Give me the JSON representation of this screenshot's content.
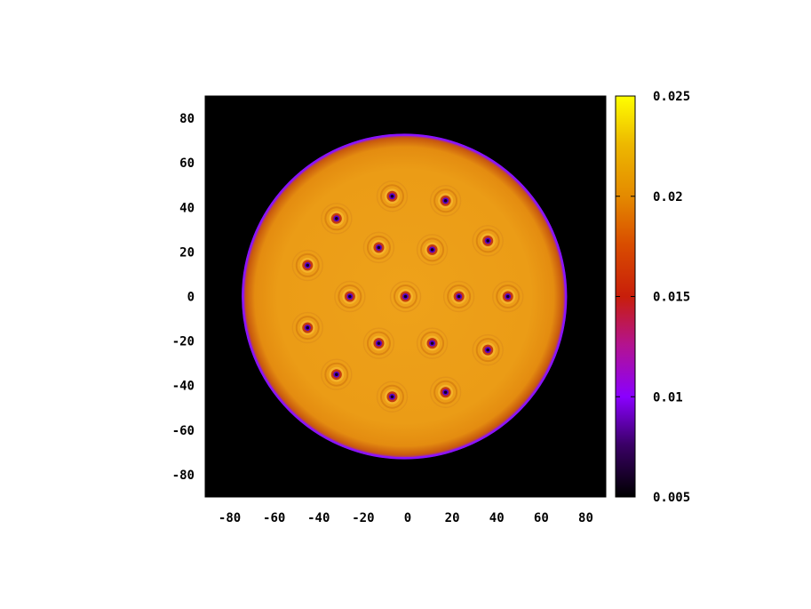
{
  "chart_data": {
    "type": "heatmap",
    "title": "",
    "xlabel": "",
    "ylabel": "",
    "xlim": [
      -91,
      89
    ],
    "ylim": [
      -90,
      90
    ],
    "x_ticks": [
      "-80",
      "-60",
      "-40",
      "-20",
      "0",
      "20",
      "40",
      "60",
      "80"
    ],
    "y_ticks": [
      "80",
      "60",
      "40",
      "20",
      "0",
      "-20",
      "-40",
      "-60",
      "-80"
    ],
    "colorbar": {
      "range": [
        0.005,
        0.025
      ],
      "ticks": [
        "0.025",
        "0.02",
        "0.015",
        "0.01",
        "0.005"
      ],
      "palette": [
        "#000000",
        "#3a0066",
        "#8a00ff",
        "#b4138f",
        "#c81e0a",
        "#e06a00",
        "#eaa000",
        "#ffff00"
      ]
    },
    "disk": {
      "center": [
        -1.5,
        0
      ],
      "radius": 73,
      "interior_value": 0.0205,
      "background_value": 0.005,
      "rim_value": 0.01
    },
    "vortices": [
      [
        -7,
        45
      ],
      [
        17,
        43
      ],
      [
        -32,
        35
      ],
      [
        -13,
        22
      ],
      [
        11,
        21
      ],
      [
        36,
        25
      ],
      [
        -45,
        14
      ],
      [
        -26,
        0
      ],
      [
        -1,
        0
      ],
      [
        23,
        0
      ],
      [
        45,
        0
      ],
      [
        -45,
        -14
      ],
      [
        -13,
        -21
      ],
      [
        11,
        -21
      ],
      [
        36,
        -24
      ],
      [
        -32,
        -35
      ],
      [
        -7,
        -45
      ],
      [
        17,
        -43
      ]
    ]
  }
}
